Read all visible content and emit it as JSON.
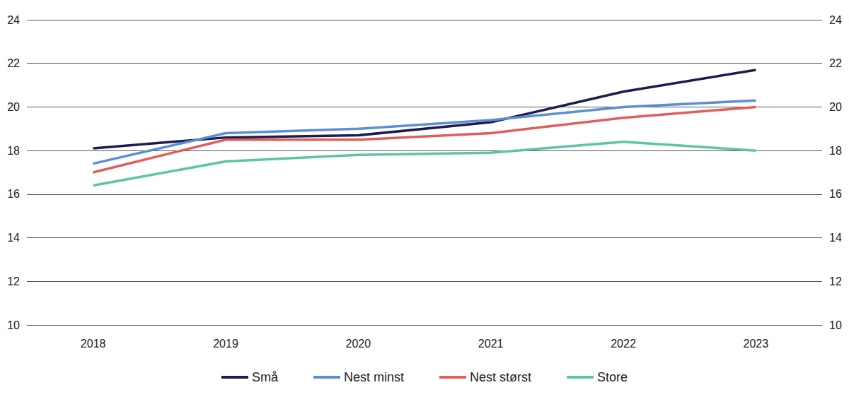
{
  "chart_data": {
    "type": "line",
    "categories": [
      "2018",
      "2019",
      "2020",
      "2021",
      "2022",
      "2023"
    ],
    "series": [
      {
        "name": "Små",
        "color": "#1c1c4e",
        "values": [
          18.1,
          18.6,
          18.7,
          19.3,
          20.7,
          21.7
        ]
      },
      {
        "name": "Nest minst",
        "color": "#5b8ed6",
        "values": [
          17.4,
          18.8,
          19.0,
          19.4,
          20.0,
          20.3
        ]
      },
      {
        "name": "Nest størst",
        "color": "#e35c5c",
        "values": [
          17.0,
          18.5,
          18.5,
          18.8,
          19.5,
          20.0
        ]
      },
      {
        "name": "Store",
        "color": "#5cc4a8",
        "values": [
          16.4,
          17.5,
          17.8,
          17.9,
          18.4,
          18.0
        ]
      }
    ],
    "ylim": [
      10,
      24
    ],
    "yticks": [
      10,
      12,
      14,
      16,
      18,
      20,
      22,
      24
    ],
    "y2lim": [
      10,
      24
    ],
    "y2ticks": [
      10,
      12,
      14,
      16,
      18,
      20,
      22,
      24
    ],
    "grid": true,
    "legend": "bottom"
  }
}
